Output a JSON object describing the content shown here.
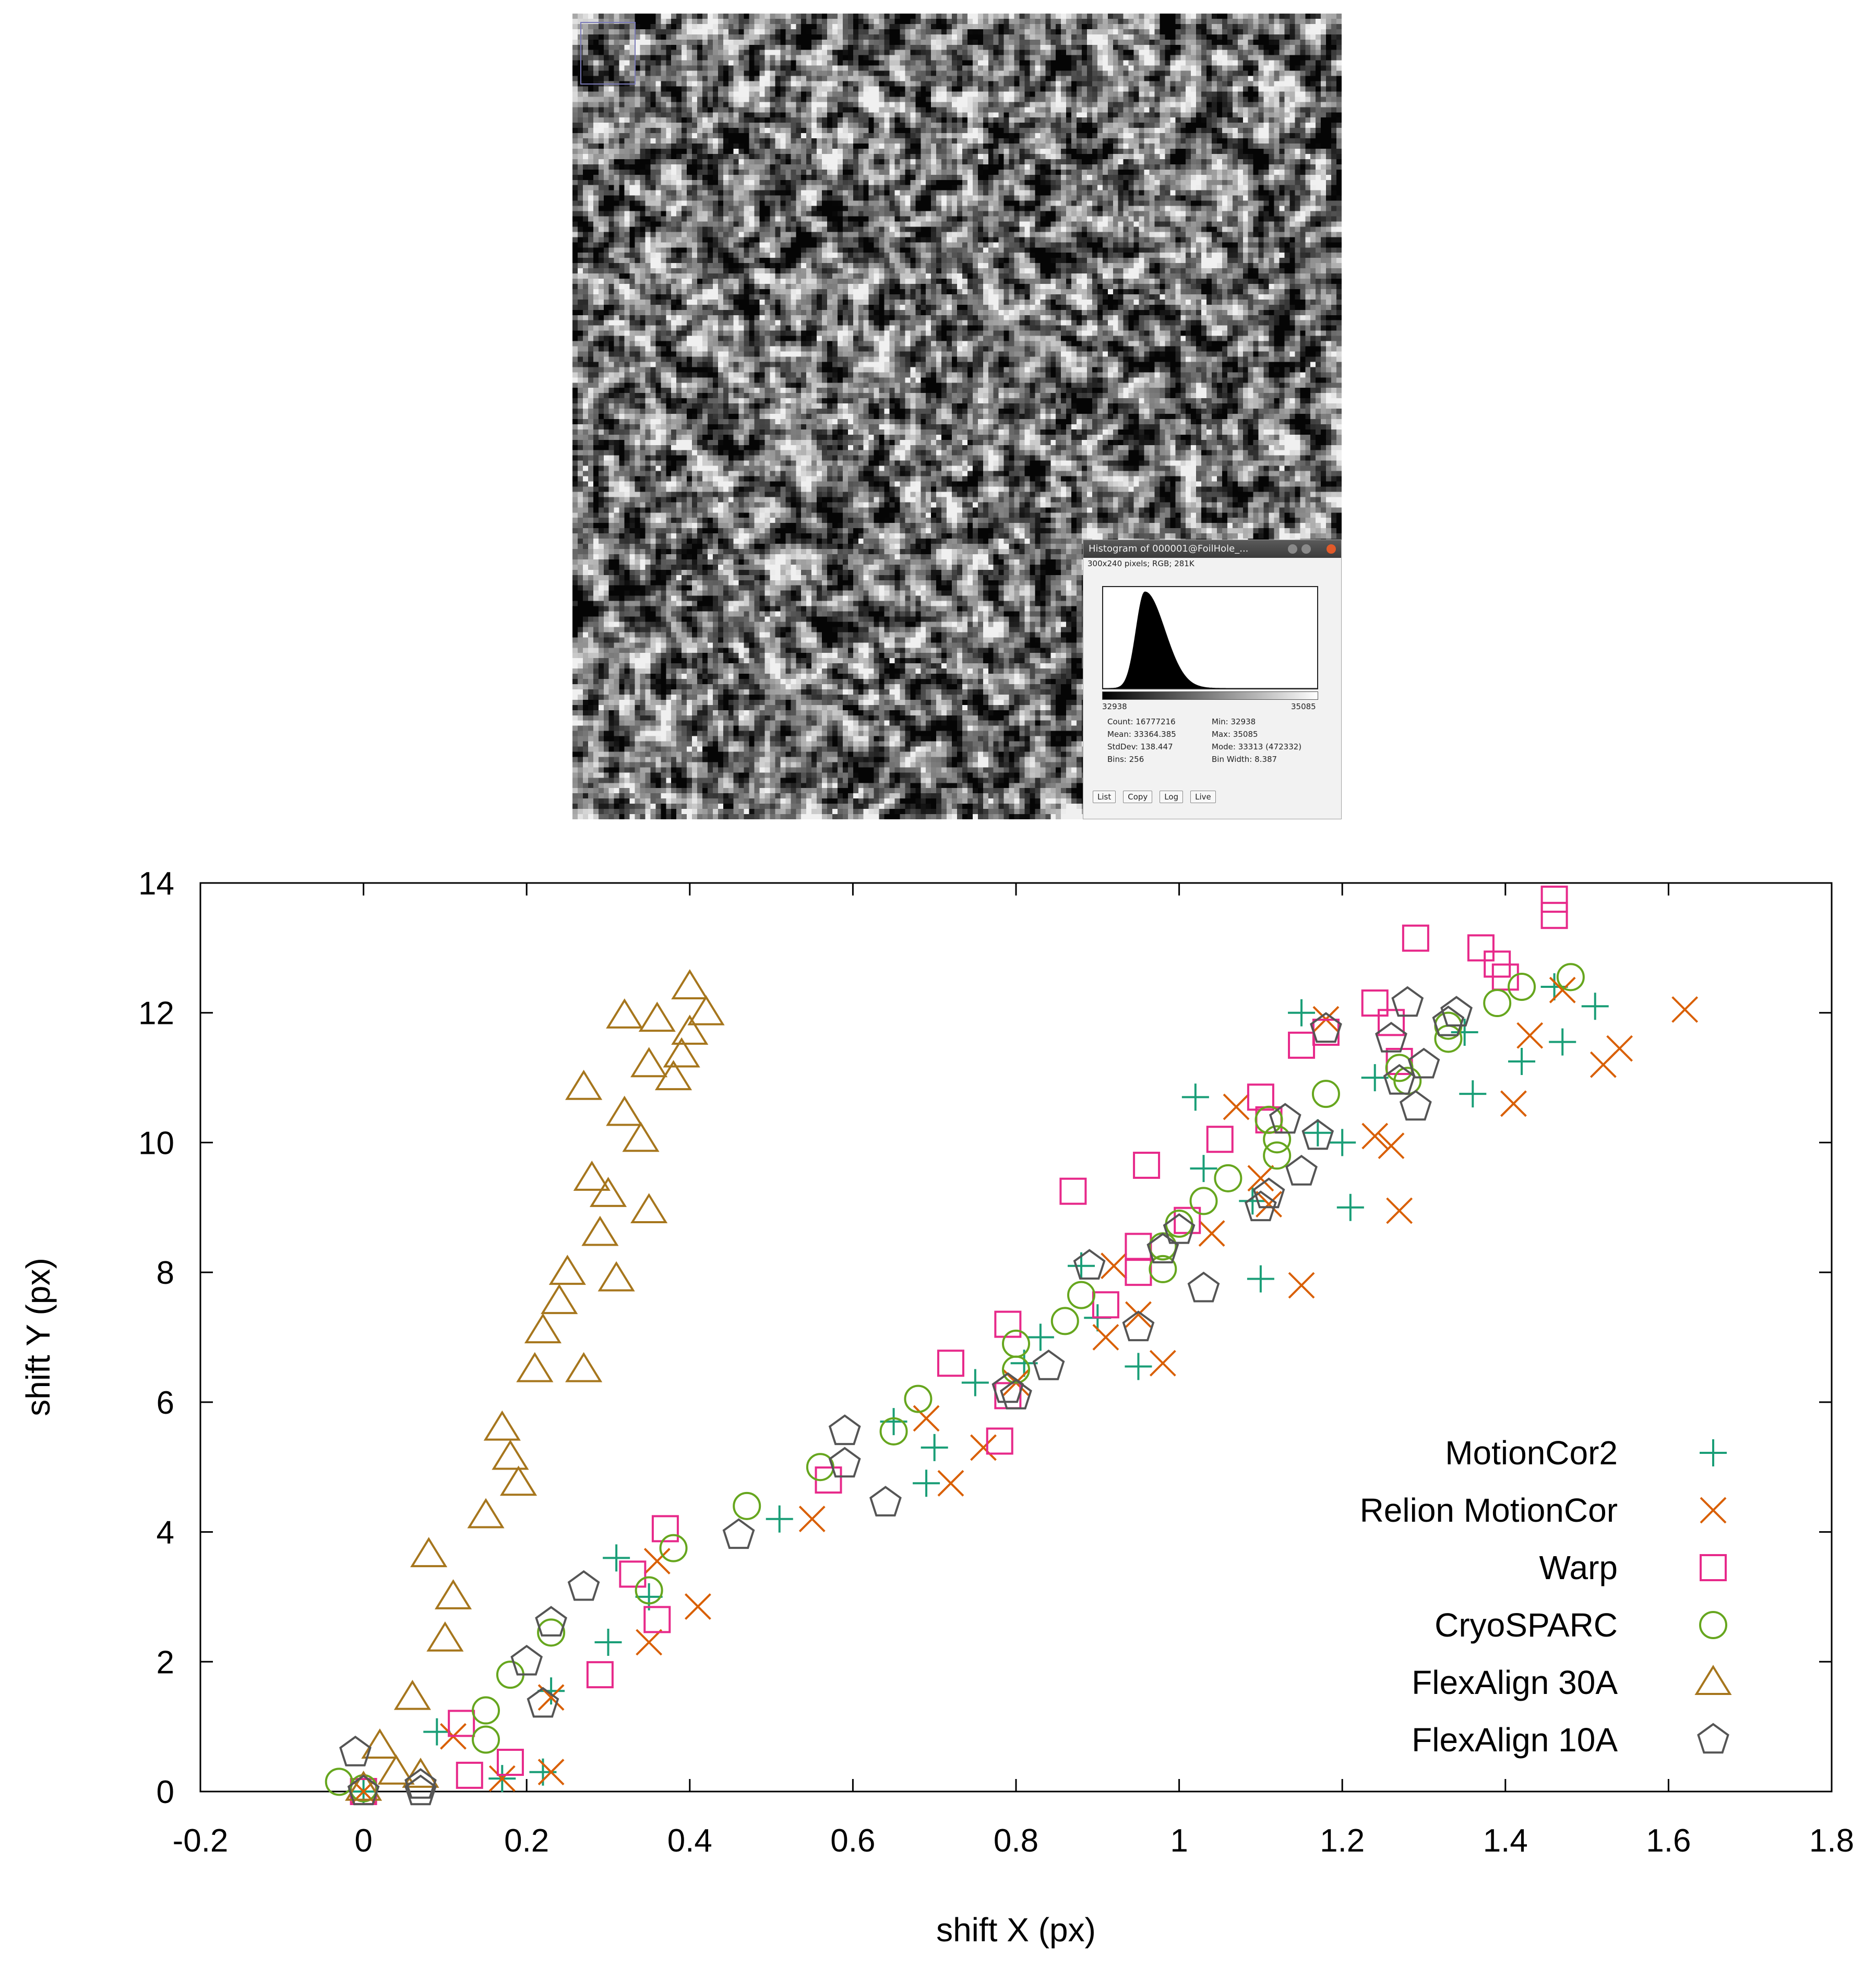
{
  "histogram_window": {
    "title": "Histogram of 000001@FoilHole_...",
    "subtitle": "300x240 pixels; RGB; 281K",
    "axis_min": "32938",
    "axis_max": "35085",
    "stats_left": [
      "Count: 16777216",
      "Mean: 33364.385",
      "StdDev: 138.447",
      "Bins: 256"
    ],
    "stats_right": [
      "Min: 32938",
      "Max: 35085",
      "Mode: 33313 (472332)",
      "Bin Width: 8.387"
    ],
    "buttons": [
      "List",
      "Copy",
      "Log",
      "Live"
    ],
    "close_color": "#e05a2a"
  },
  "chart_data": {
    "type": "scatter",
    "xlabel": "shift X (px)",
    "ylabel": "shift Y (px)",
    "xlim": [
      -0.2,
      1.8
    ],
    "ylim": [
      0,
      14
    ],
    "xticks": [
      "-0.2",
      "0",
      "0.2",
      "0.4",
      "0.6",
      "0.8",
      "1",
      "1.2",
      "1.4",
      "1.6",
      "1.8"
    ],
    "yticks": [
      "0",
      "2",
      "4",
      "6",
      "8",
      "10",
      "12",
      "14"
    ],
    "grid": false,
    "legend_position": "bottom-right",
    "series": [
      {
        "name": "MotionCor2",
        "marker": "plus",
        "color": "#1a9e77",
        "points": [
          [
            0,
            0
          ],
          [
            0.09,
            0.92
          ],
          [
            0.17,
            0.2
          ],
          [
            0.22,
            0.3
          ],
          [
            0.23,
            1.55
          ],
          [
            0.3,
            2.3
          ],
          [
            0.31,
            3.6
          ],
          [
            0.35,
            3.0
          ],
          [
            0.51,
            4.2
          ],
          [
            0.65,
            5.7
          ],
          [
            0.69,
            4.75
          ],
          [
            0.7,
            5.3
          ],
          [
            0.75,
            6.3
          ],
          [
            0.81,
            6.6
          ],
          [
            0.83,
            7.0
          ],
          [
            0.88,
            8.1
          ],
          [
            0.9,
            7.3
          ],
          [
            0.95,
            6.55
          ],
          [
            1.02,
            10.7
          ],
          [
            1.03,
            9.6
          ],
          [
            1.09,
            9.1
          ],
          [
            1.1,
            7.9
          ],
          [
            1.15,
            12.0
          ],
          [
            1.17,
            10.15
          ],
          [
            1.2,
            10.0
          ],
          [
            1.21,
            9.0
          ],
          [
            1.24,
            11.0
          ],
          [
            1.35,
            11.7
          ],
          [
            1.36,
            10.75
          ],
          [
            1.42,
            11.25
          ],
          [
            1.46,
            12.4
          ],
          [
            1.47,
            11.55
          ],
          [
            1.51,
            12.1
          ]
        ]
      },
      {
        "name": "Relion MotionCor",
        "marker": "cross",
        "color": "#d95f02",
        "points": [
          [
            0,
            0
          ],
          [
            0.11,
            0.85
          ],
          [
            0.17,
            0.2
          ],
          [
            0.23,
            1.45
          ],
          [
            0.23,
            0.3
          ],
          [
            0.35,
            2.3
          ],
          [
            0.36,
            3.55
          ],
          [
            0.41,
            2.85
          ],
          [
            0.55,
            4.2
          ],
          [
            0.69,
            5.75
          ],
          [
            0.72,
            4.75
          ],
          [
            0.76,
            5.3
          ],
          [
            0.8,
            6.3
          ],
          [
            0.91,
            7.0
          ],
          [
            0.92,
            8.1
          ],
          [
            0.95,
            7.35
          ],
          [
            0.98,
            6.6
          ],
          [
            1.04,
            8.6
          ],
          [
            1.07,
            10.55
          ],
          [
            1.1,
            9.45
          ],
          [
            1.11,
            9.05
          ],
          [
            1.15,
            7.8
          ],
          [
            1.18,
            11.9
          ],
          [
            1.24,
            10.1
          ],
          [
            1.26,
            9.95
          ],
          [
            1.27,
            8.95
          ],
          [
            1.41,
            10.6
          ],
          [
            1.43,
            11.65
          ],
          [
            1.47,
            12.35
          ],
          [
            1.52,
            11.2
          ],
          [
            1.54,
            11.45
          ],
          [
            1.62,
            12.05
          ]
        ]
      },
      {
        "name": "Warp",
        "marker": "square",
        "color": "#e7298a",
        "points": [
          [
            0,
            0
          ],
          [
            0.12,
            1.05
          ],
          [
            0.13,
            0.25
          ],
          [
            0.18,
            0.45
          ],
          [
            0.29,
            1.8
          ],
          [
            0.33,
            3.35
          ],
          [
            0.36,
            2.65
          ],
          [
            0.37,
            4.05
          ],
          [
            0.57,
            4.8
          ],
          [
            0.72,
            6.6
          ],
          [
            0.78,
            5.4
          ],
          [
            0.79,
            7.2
          ],
          [
            0.79,
            6.1
          ],
          [
            0.87,
            9.25
          ],
          [
            0.91,
            7.5
          ],
          [
            0.95,
            8.4
          ],
          [
            0.95,
            8.0
          ],
          [
            0.96,
            9.65
          ],
          [
            1.01,
            8.8
          ],
          [
            1.05,
            10.05
          ],
          [
            1.1,
            10.7
          ],
          [
            1.11,
            10.35
          ],
          [
            1.15,
            11.5
          ],
          [
            1.18,
            11.7
          ],
          [
            1.24,
            12.15
          ],
          [
            1.26,
            11.85
          ],
          [
            1.27,
            11.25
          ],
          [
            1.29,
            13.15
          ],
          [
            1.37,
            13.0
          ],
          [
            1.39,
            12.75
          ],
          [
            1.4,
            12.55
          ],
          [
            1.46,
            13.5
          ],
          [
            1.46,
            13.75
          ]
        ]
      },
      {
        "name": "CryoSPARC",
        "marker": "circle",
        "color": "#66a61e",
        "points": [
          [
            -0.03,
            0.15
          ],
          [
            0,
            0.05
          ],
          [
            0.15,
            1.25
          ],
          [
            0.15,
            0.8
          ],
          [
            0.18,
            1.8
          ],
          [
            0.23,
            2.45
          ],
          [
            0.35,
            3.1
          ],
          [
            0.38,
            3.75
          ],
          [
            0.47,
            4.4
          ],
          [
            0.56,
            5.0
          ],
          [
            0.65,
            5.55
          ],
          [
            0.68,
            6.05
          ],
          [
            0.8,
            6.9
          ],
          [
            0.8,
            6.5
          ],
          [
            0.86,
            7.25
          ],
          [
            0.88,
            7.65
          ],
          [
            0.98,
            8.05
          ],
          [
            0.98,
            8.4
          ],
          [
            1.0,
            8.75
          ],
          [
            1.03,
            9.1
          ],
          [
            1.06,
            9.45
          ],
          [
            1.11,
            10.35
          ],
          [
            1.12,
            10.05
          ],
          [
            1.12,
            9.8
          ],
          [
            1.18,
            10.75
          ],
          [
            1.27,
            11.15
          ],
          [
            1.28,
            10.95
          ],
          [
            1.33,
            11.8
          ],
          [
            1.33,
            11.6
          ],
          [
            1.39,
            12.15
          ],
          [
            1.42,
            12.4
          ],
          [
            1.48,
            12.55
          ]
        ]
      },
      {
        "name": "FlexAlign 30A",
        "marker": "triangle",
        "color": "#a6761d",
        "points": [
          [
            0,
            0.05
          ],
          [
            0.02,
            0.7
          ],
          [
            0.04,
            0.3
          ],
          [
            0.06,
            1.45
          ],
          [
            0.07,
            0.25
          ],
          [
            0.08,
            3.65
          ],
          [
            0.1,
            2.35
          ],
          [
            0.11,
            3.0
          ],
          [
            0.15,
            4.25
          ],
          [
            0.17,
            5.6
          ],
          [
            0.18,
            5.15
          ],
          [
            0.19,
            4.75
          ],
          [
            0.21,
            6.5
          ],
          [
            0.22,
            7.1
          ],
          [
            0.24,
            7.55
          ],
          [
            0.25,
            8.0
          ],
          [
            0.27,
            6.5
          ],
          [
            0.27,
            10.85
          ],
          [
            0.28,
            9.45
          ],
          [
            0.29,
            8.6
          ],
          [
            0.3,
            9.2
          ],
          [
            0.31,
            7.9
          ],
          [
            0.32,
            10.45
          ],
          [
            0.32,
            11.95
          ],
          [
            0.34,
            10.05
          ],
          [
            0.35,
            11.2
          ],
          [
            0.35,
            8.95
          ],
          [
            0.36,
            11.9
          ],
          [
            0.38,
            11.0
          ],
          [
            0.39,
            11.35
          ],
          [
            0.4,
            11.7
          ],
          [
            0.4,
            12.4
          ],
          [
            0.42,
            12.0
          ]
        ]
      },
      {
        "name": "FlexAlign 10A",
        "marker": "pentagon",
        "color": "#555555",
        "points": [
          [
            -0.01,
            0.6
          ],
          [
            0,
            0.0
          ],
          [
            0.07,
            0.0
          ],
          [
            0.07,
            0.1
          ],
          [
            0.22,
            1.35
          ],
          [
            0.2,
            2.0
          ],
          [
            0.23,
            2.6
          ],
          [
            0.27,
            3.15
          ],
          [
            0.46,
            3.95
          ],
          [
            0.59,
            5.05
          ],
          [
            0.59,
            5.55
          ],
          [
            0.64,
            4.45
          ],
          [
            0.79,
            6.2
          ],
          [
            0.8,
            6.1
          ],
          [
            0.84,
            6.55
          ],
          [
            0.89,
            8.1
          ],
          [
            0.95,
            7.15
          ],
          [
            0.98,
            8.35
          ],
          [
            1.0,
            8.65
          ],
          [
            1.03,
            7.75
          ],
          [
            1.1,
            9.0
          ],
          [
            1.11,
            9.2
          ],
          [
            1.13,
            10.35
          ],
          [
            1.15,
            9.55
          ],
          [
            1.17,
            10.1
          ],
          [
            1.18,
            11.75
          ],
          [
            1.26,
            11.6
          ],
          [
            1.27,
            10.95
          ],
          [
            1.28,
            12.15
          ],
          [
            1.29,
            10.55
          ],
          [
            1.3,
            11.2
          ],
          [
            1.33,
            11.85
          ],
          [
            1.34,
            12.0
          ]
        ]
      }
    ]
  }
}
